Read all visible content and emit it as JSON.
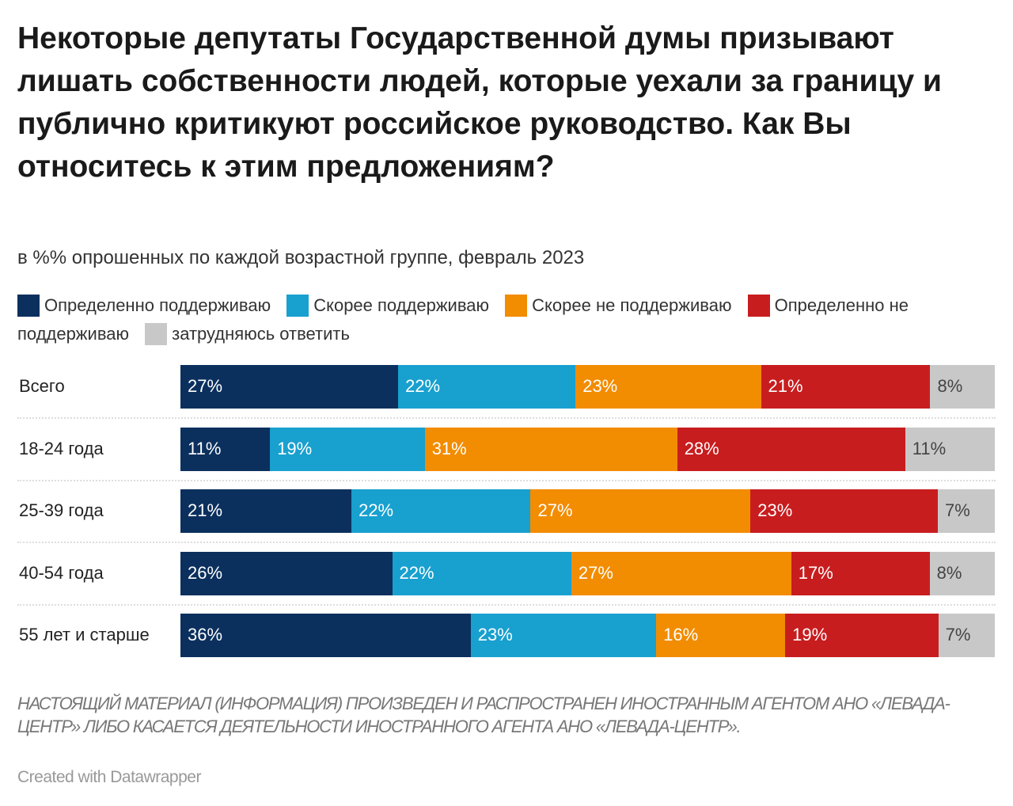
{
  "chart_data": {
    "type": "bar",
    "orientation": "horizontal",
    "stacked": true,
    "title": "Некоторые депутаты Государственной думы призывают лишать собственности людей, которые уехали за границу и публично критикуют российское руководство. Как Вы относитесь к этим предложениям?",
    "subtitle": "в %% опрошенных по каждой возрастной группе, февраль 2023",
    "legend_placement": "top",
    "categories": [
      "Всего",
      "18-24 года",
      "25-39 года",
      "40-54 года",
      "55 лет и старше"
    ],
    "series": [
      {
        "name": "Определенно поддерживаю",
        "color": "#0b305e",
        "values": [
          27,
          11,
          21,
          26,
          36
        ]
      },
      {
        "name": "Скорее поддерживаю",
        "color": "#18a0cf",
        "values": [
          22,
          19,
          22,
          22,
          23
        ]
      },
      {
        "name": "Скорее не поддерживаю",
        "color": "#f28c00",
        "values": [
          23,
          31,
          27,
          27,
          16
        ]
      },
      {
        "name": "Определенно не поддерживаю",
        "color": "#c81d1f",
        "values": [
          21,
          28,
          23,
          17,
          19
        ]
      },
      {
        "name": "затрудняюсь ответить",
        "color": "#c8c8c8",
        "values": [
          8,
          11,
          7,
          8,
          7
        ]
      }
    ],
    "value_suffix": "%"
  },
  "footer": {
    "note": "НАСТОЯЩИЙ МАТЕРИАЛ (ИНФОРМАЦИЯ) ПРОИЗВЕДЕН И РАСПРОСТРАНЕН ИНОСТРАННЫМ АГЕНТОМ АНО «ЛЕВАДА-ЦЕНТР» ЛИБО КАСАЕТСЯ ДЕЯТЕЛЬНОСТИ ИНОСТРАННОГО АГЕНТА АНО «ЛЕВАДА-ЦЕНТР».",
    "credit": "Created with Datawrapper"
  }
}
